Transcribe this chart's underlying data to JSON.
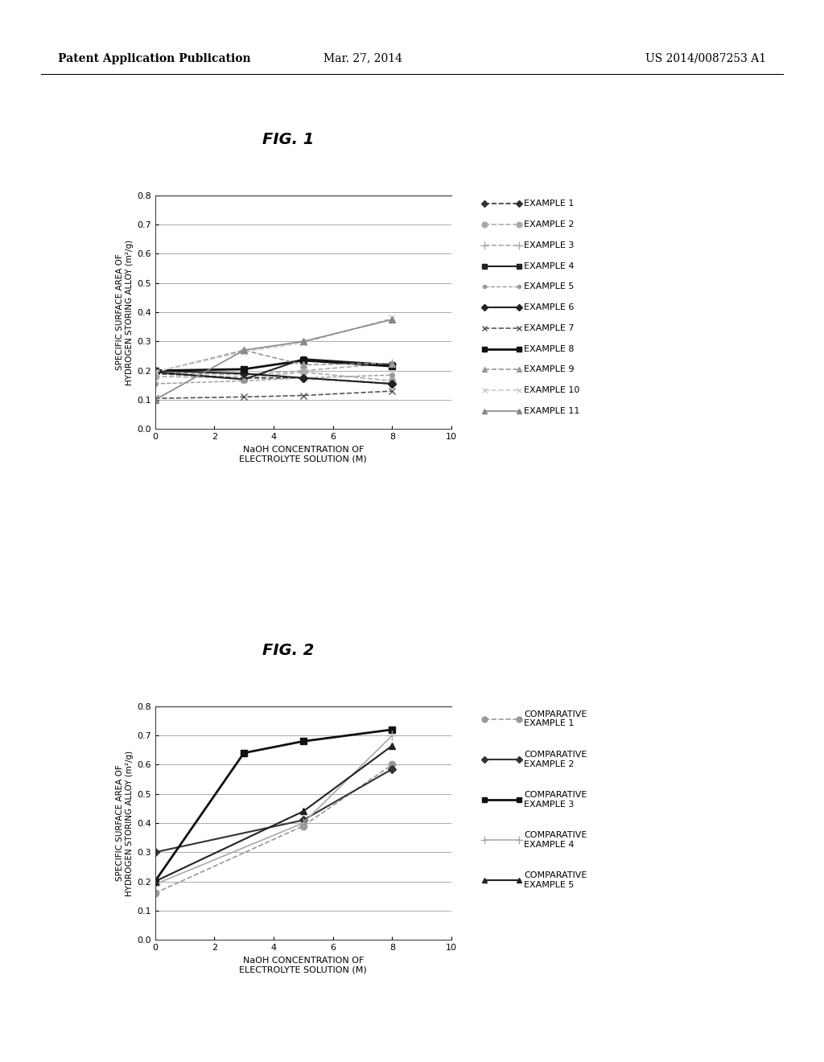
{
  "fig1_title": "FIG. 1",
  "fig2_title": "FIG. 2",
  "xlabel": "NaOH CONCENTRATION OF\nELECTROLYTE SOLUTION (M)",
  "ylabel": "SPECIFIC SURFACE AREA OF\nHYDROGEN STORING ALLOY (m²/g)",
  "xlim": [
    0,
    10
  ],
  "ylim": [
    0,
    0.8
  ],
  "xticks": [
    0,
    2,
    4,
    6,
    8,
    10
  ],
  "yticks": [
    0,
    0.1,
    0.2,
    0.3,
    0.4,
    0.5,
    0.6,
    0.7,
    0.8
  ],
  "fig1_series": [
    {
      "label": "EXAMPLE 1",
      "x": [
        0,
        3,
        5,
        8
      ],
      "y": [
        0.19,
        0.175,
        0.175,
        0.155
      ],
      "color": "#333333",
      "linestyle": "--",
      "marker": "D",
      "markersize": 5,
      "linewidth": 1.2
    },
    {
      "label": "EXAMPLE 2",
      "x": [
        0,
        3,
        5,
        8
      ],
      "y": [
        0.18,
        0.175,
        0.195,
        0.165
      ],
      "color": "#aaaaaa",
      "linestyle": "--",
      "marker": "o",
      "markersize": 6,
      "linewidth": 1.2
    },
    {
      "label": "EXAMPLE 3",
      "x": [
        0,
        3,
        5,
        8
      ],
      "y": [
        0.195,
        0.185,
        0.2,
        0.225
      ],
      "color": "#aaaaaa",
      "linestyle": "--",
      "marker": "+",
      "markersize": 8,
      "linewidth": 1.2
    },
    {
      "label": "EXAMPLE 4",
      "x": [
        0,
        3,
        5,
        8
      ],
      "y": [
        0.195,
        0.17,
        0.24,
        0.22
      ],
      "color": "#222222",
      "linestyle": "-",
      "marker": "s",
      "markersize": 5,
      "linewidth": 1.5
    },
    {
      "label": "EXAMPLE 5",
      "x": [
        0,
        3,
        5,
        8
      ],
      "y": [
        0.155,
        0.165,
        0.175,
        0.185
      ],
      "color": "#999999",
      "linestyle": "--",
      "marker": "o",
      "markersize": 4,
      "linewidth": 1.0
    },
    {
      "label": "EXAMPLE 6",
      "x": [
        0,
        3,
        5,
        8
      ],
      "y": [
        0.2,
        0.19,
        0.175,
        0.155
      ],
      "color": "#222222",
      "linestyle": "-",
      "marker": "D",
      "markersize": 5,
      "linewidth": 1.5
    },
    {
      "label": "EXAMPLE 7",
      "x": [
        0,
        3,
        5,
        8
      ],
      "y": [
        0.105,
        0.11,
        0.115,
        0.13
      ],
      "color": "#555555",
      "linestyle": "--",
      "marker": "x",
      "markersize": 6,
      "linewidth": 1.2
    },
    {
      "label": "EXAMPLE 8",
      "x": [
        0,
        3,
        5,
        8
      ],
      "y": [
        0.2,
        0.205,
        0.235,
        0.215
      ],
      "color": "#111111",
      "linestyle": "-",
      "marker": "s",
      "markersize": 6,
      "linewidth": 2.0
    },
    {
      "label": "EXAMPLE 9",
      "x": [
        0,
        3,
        5,
        8
      ],
      "y": [
        0.195,
        0.27,
        0.22,
        0.225
      ],
      "color": "#999999",
      "linestyle": "--",
      "marker": "^",
      "markersize": 6,
      "linewidth": 1.2
    },
    {
      "label": "EXAMPLE 10",
      "x": [
        0,
        3,
        5,
        8
      ],
      "y": [
        0.195,
        0.265,
        0.295,
        0.38
      ],
      "color": "#cccccc",
      "linestyle": "--",
      "marker": "x",
      "markersize": 6,
      "linewidth": 1.2
    },
    {
      "label": "EXAMPLE 11",
      "x": [
        0,
        3,
        5,
        8
      ],
      "y": [
        0.1,
        0.27,
        0.3,
        0.375
      ],
      "color": "#888888",
      "linestyle": "-",
      "marker": "^",
      "markersize": 6,
      "linewidth": 1.2
    }
  ],
  "fig2_series": [
    {
      "label": "COMPARATIVE\nEXAMPLE 1",
      "x": [
        0,
        5,
        8
      ],
      "y": [
        0.16,
        0.39,
        0.6
      ],
      "color": "#999999",
      "linestyle": "--",
      "marker": "o",
      "markersize": 6,
      "linewidth": 1.2
    },
    {
      "label": "COMPARATIVE\nEXAMPLE 2",
      "x": [
        0,
        5,
        8
      ],
      "y": [
        0.3,
        0.41,
        0.585
      ],
      "color": "#333333",
      "linestyle": "-",
      "marker": "D",
      "markersize": 5,
      "linewidth": 1.5
    },
    {
      "label": "COMPARATIVE\nEXAMPLE 3",
      "x": [
        0,
        3,
        5,
        8
      ],
      "y": [
        0.2,
        0.64,
        0.68,
        0.72
      ],
      "color": "#111111",
      "linestyle": "-",
      "marker": "s",
      "markersize": 6,
      "linewidth": 2.0
    },
    {
      "label": "COMPARATIVE\nEXAMPLE 4",
      "x": [
        0,
        5,
        8
      ],
      "y": [
        0.19,
        0.4,
        0.7
      ],
      "color": "#aaaaaa",
      "linestyle": "-",
      "marker": "+",
      "markersize": 8,
      "linewidth": 1.2
    },
    {
      "label": "COMPARATIVE\nEXAMPLE 5",
      "x": [
        0,
        5,
        8
      ],
      "y": [
        0.2,
        0.44,
        0.665
      ],
      "color": "#222222",
      "linestyle": "-",
      "marker": "^",
      "markersize": 6,
      "linewidth": 1.5
    }
  ],
  "background_color": "#ffffff",
  "header_left": "Patent Application Publication",
  "header_center": "Mar. 27, 2014",
  "header_right": "US 2014/0087253 A1"
}
